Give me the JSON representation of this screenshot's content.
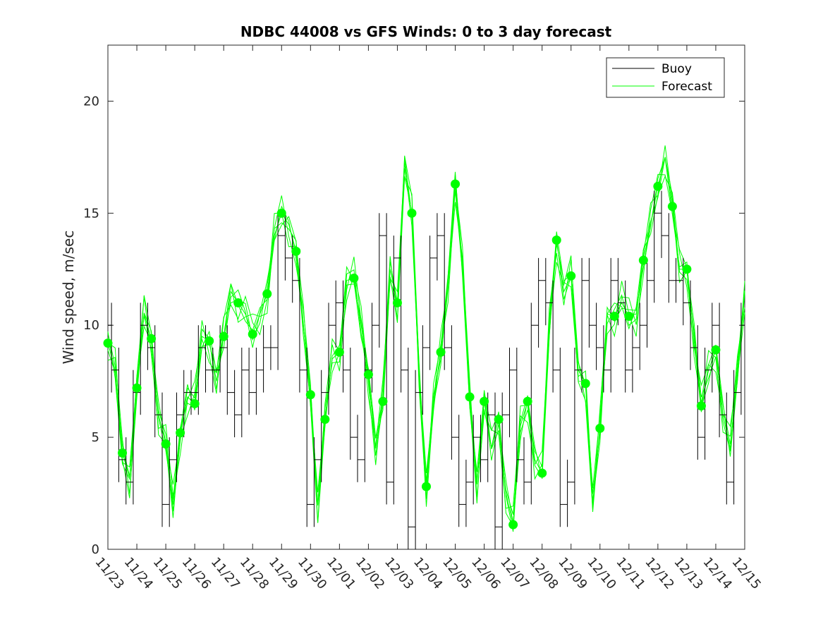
{
  "chart_data": {
    "type": "line",
    "title": "NDBC 44008 vs GFS Winds: 0 to 3 day forecast",
    "xlabel": "",
    "ylabel": "Wind speed, m/sec",
    "xlim": [
      0,
      22
    ],
    "ylim": [
      0,
      22.5
    ],
    "categories": [
      "11/23",
      "11/24",
      "11/25",
      "11/26",
      "11/27",
      "11/28",
      "11/29",
      "11/30",
      "12/01",
      "12/02",
      "12/03",
      "12/04",
      "12/05",
      "12/06",
      "12/07",
      "12/08",
      "12/09",
      "12/10",
      "12/11",
      "12/12",
      "12/13",
      "12/14",
      "12/15"
    ],
    "y_ticks": [
      0,
      5,
      10,
      15,
      20
    ],
    "legend": {
      "position": "top-right",
      "entries": [
        "Buoy",
        "Forecast"
      ]
    },
    "colors": {
      "buoy": "#000000",
      "forecast": "#00ff00"
    },
    "series": [
      {
        "name": "Buoy",
        "x": [
          0,
          0.25,
          0.5,
          0.75,
          1,
          1.25,
          1.5,
          1.75,
          2,
          2.25,
          2.5,
          2.75,
          3,
          3.25,
          3.5,
          3.75,
          4,
          4.25,
          4.5,
          4.75,
          5,
          5.25,
          5.5,
          5.75,
          6,
          6.25,
          6.5,
          6.75,
          7,
          7.25,
          7.5,
          7.75,
          8,
          8.25,
          8.5,
          8.75,
          9,
          9.25,
          9.5,
          9.75,
          10,
          10.25,
          10.5,
          10.75,
          11,
          11.25,
          11.5,
          11.75,
          12,
          12.25,
          12.5,
          12.75,
          13,
          13.25,
          13.5,
          13.75,
          14,
          14.25,
          14.5,
          14.75,
          15,
          15.25,
          15.5,
          15.75,
          16,
          16.25,
          16.5,
          16.75,
          17,
          17.25,
          17.5,
          17.75,
          18,
          18.25,
          18.5,
          18.75,
          19,
          19.25,
          19.5,
          19.75,
          20,
          20.25,
          20.5,
          20.75,
          21,
          21.25,
          21.5,
          21.75,
          22
        ],
        "values": [
          10,
          8,
          4,
          3,
          7,
          10,
          9,
          6,
          2,
          4,
          6,
          7,
          7,
          9,
          8,
          8,
          9,
          7,
          6,
          8,
          7,
          8,
          9,
          9,
          14,
          13,
          12,
          8,
          2,
          4,
          7,
          10,
          11,
          8,
          5,
          4,
          8,
          10,
          14,
          3,
          13,
          8,
          1,
          7,
          9,
          13,
          14,
          9,
          5,
          2,
          3,
          5,
          4,
          6,
          1,
          6,
          8,
          4,
          3,
          10,
          12,
          11,
          8,
          2,
          3,
          8,
          12,
          10,
          9,
          8,
          12,
          11,
          8,
          9,
          10,
          12,
          15,
          14,
          12,
          12,
          11,
          9,
          5,
          8,
          10,
          6,
          3,
          7,
          10
        ]
      },
      {
        "name": "Forecast",
        "x": [
          0,
          0.25,
          0.5,
          0.75,
          1,
          1.25,
          1.5,
          1.75,
          2,
          2.25,
          2.5,
          2.75,
          3,
          3.25,
          3.5,
          3.75,
          4,
          4.25,
          4.5,
          4.75,
          5,
          5.25,
          5.5,
          5.75,
          6,
          6.25,
          6.5,
          6.75,
          7,
          7.25,
          7.5,
          7.75,
          8,
          8.25,
          8.5,
          8.75,
          9,
          9.25,
          9.5,
          9.75,
          10,
          10.25,
          10.5,
          10.75,
          11,
          11.25,
          11.5,
          11.75,
          12,
          12.25,
          12.5,
          12.75,
          13,
          13.25,
          13.5,
          13.75,
          14,
          14.25,
          14.5,
          14.75,
          15,
          15.25,
          15.5,
          15.75,
          16,
          16.25,
          16.5,
          16.75,
          17,
          17.25,
          17.5,
          17.75,
          18,
          18.25,
          18.5,
          18.75,
          19,
          19.25,
          19.5,
          19.75,
          20,
          20.25,
          20.5,
          20.75,
          21,
          21.25,
          21.5,
          21.75,
          22
        ],
        "values": [
          9.2,
          8.0,
          4.3,
          3.2,
          7.2,
          10.5,
          9.4,
          6.0,
          4.7,
          2.0,
          5.2,
          6.8,
          6.5,
          9.5,
          9.3,
          7.5,
          9.5,
          11.5,
          11.0,
          10.5,
          9.6,
          10.5,
          11.4,
          14.0,
          15.0,
          14.5,
          13.3,
          10.0,
          6.9,
          2.0,
          5.8,
          8.5,
          8.8,
          12.0,
          12.1,
          10.0,
          7.8,
          4.5,
          6.6,
          12.5,
          11.0,
          17.0,
          15.0,
          8.0,
          2.8,
          6.5,
          8.8,
          12.0,
          16.3,
          12.5,
          6.8,
          3.0,
          6.6,
          4.5,
          5.8,
          2.5,
          1.1,
          5.5,
          6.6,
          4.0,
          3.4,
          10.0,
          13.8,
          11.5,
          12.2,
          8.0,
          7.4,
          2.0,
          5.4,
          10.5,
          10.4,
          11.0,
          10.4,
          10.5,
          12.9,
          14.5,
          16.2,
          17.5,
          15.3,
          12.5,
          12.5,
          9.5,
          6.4,
          8.0,
          8.9,
          6.0,
          4.5,
          8.0,
          11.5
        ]
      }
    ],
    "markers": {
      "name": "Forecast analysis points",
      "x": [
        0,
        0.5,
        1,
        1.5,
        2,
        2.5,
        3,
        3.5,
        4,
        4.5,
        5,
        5.5,
        6,
        6.5,
        7,
        7.5,
        8,
        8.5,
        9,
        9.5,
        10,
        10.5,
        11,
        11.5,
        12,
        12.5,
        13,
        13.5,
        14,
        14.5,
        15,
        15.5,
        16,
        16.5,
        17,
        17.5,
        18,
        18.5,
        19,
        19.5,
        20,
        20.5,
        21
      ],
      "values": [
        9.2,
        4.3,
        7.2,
        9.4,
        4.7,
        5.2,
        6.5,
        9.3,
        9.5,
        11.0,
        9.6,
        11.4,
        15.0,
        13.3,
        6.9,
        5.8,
        8.8,
        12.1,
        7.8,
        6.6,
        11.0,
        15.0,
        2.8,
        8.8,
        16.3,
        6.8,
        6.6,
        5.8,
        1.1,
        6.6,
        3.4,
        13.8,
        12.2,
        7.4,
        5.4,
        10.4,
        10.4,
        12.9,
        16.2,
        15.3,
        12.5,
        6.4,
        8.9
      ]
    }
  }
}
